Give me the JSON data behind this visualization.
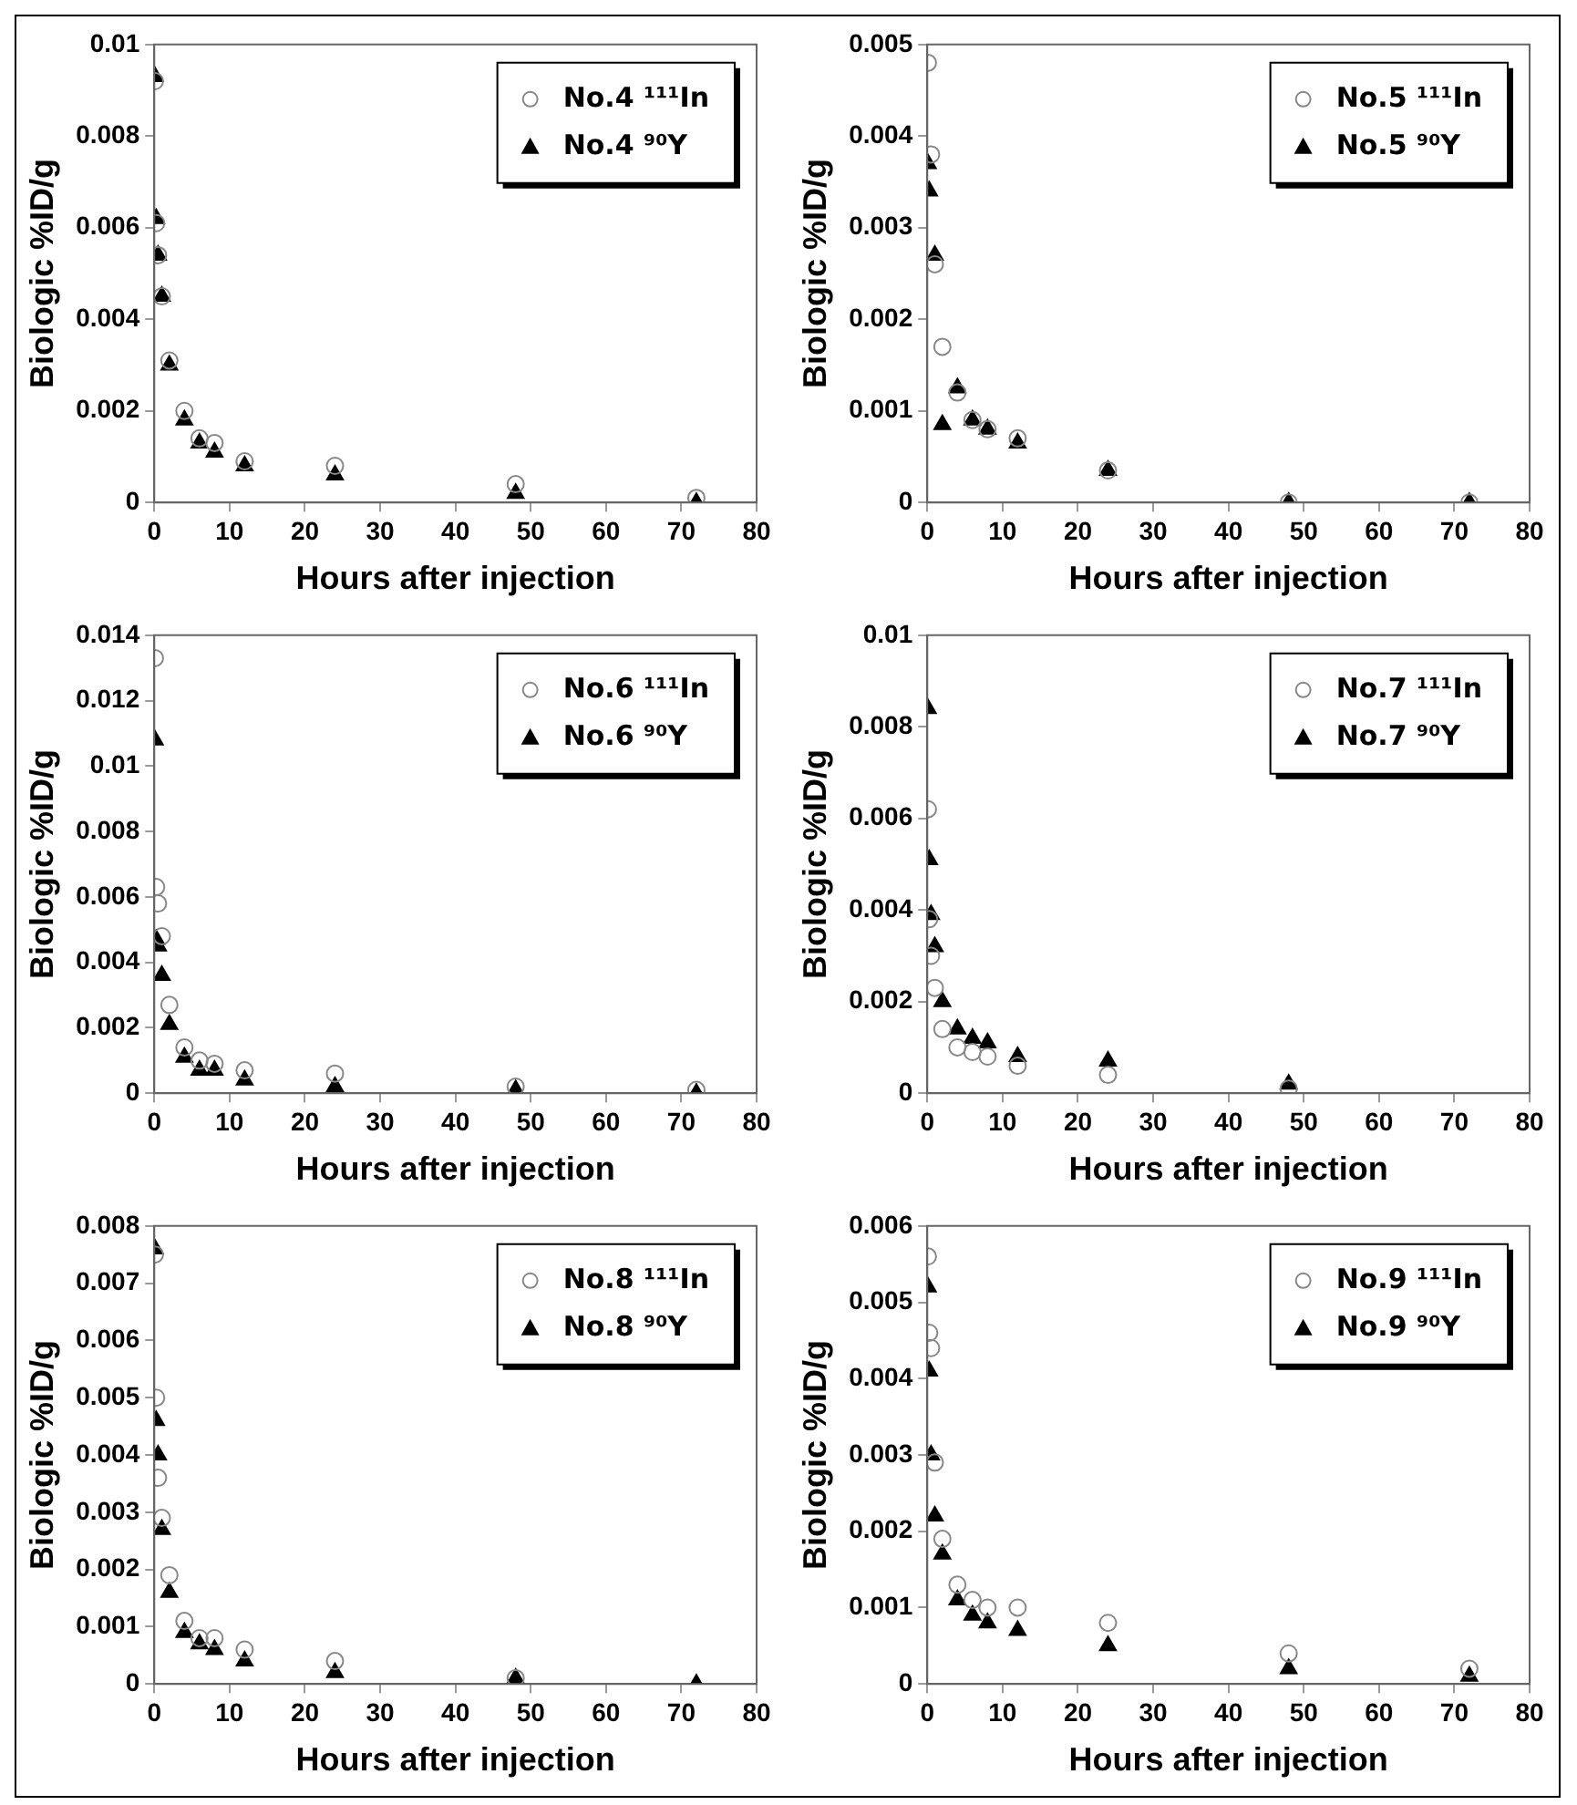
{
  "chart_data": [
    {
      "type": "scatter",
      "xlabel": "Hours after injection",
      "ylabel": "Biologic %ID/g",
      "xlim": [
        0,
        80
      ],
      "xticks": [
        0,
        10,
        20,
        30,
        40,
        50,
        60,
        70,
        80
      ],
      "ylim": [
        0,
        0.01
      ],
      "yticks": [
        0,
        0.002,
        0.004,
        0.006,
        0.008,
        0.01
      ],
      "legend": "top right",
      "grid": false,
      "series": [
        {
          "name": "No.4 ¹¹¹In",
          "color": "#888888",
          "marker": "circle",
          "x": [
            0.08,
            0.25,
            0.5,
            1,
            2,
            4,
            6,
            8,
            12,
            24,
            48,
            72
          ],
          "values": [
            0.0092,
            0.0061,
            0.0054,
            0.0045,
            0.0031,
            0.002,
            0.0014,
            0.0013,
            0.0009,
            0.0008,
            0.0004,
            0.0001
          ]
        },
        {
          "name": "No.4 ⁹⁰Y",
          "color": "#000000",
          "marker": "triangle",
          "x": [
            0.08,
            0.25,
            0.5,
            1,
            2,
            4,
            6,
            8,
            12,
            24,
            48,
            72
          ],
          "values": [
            0.0093,
            0.0062,
            0.0054,
            0.0045,
            0.003,
            0.0018,
            0.0013,
            0.0011,
            0.0008,
            0.0006,
            0.0002,
            0
          ]
        }
      ]
    },
    {
      "type": "scatter",
      "xlabel": "Hours after injection",
      "ylabel": "Biologic %ID/g",
      "xlim": [
        0,
        80
      ],
      "xticks": [
        0,
        10,
        20,
        30,
        40,
        50,
        60,
        70,
        80
      ],
      "ylim": [
        0,
        0.005
      ],
      "yticks": [
        0,
        0.001,
        0.002,
        0.003,
        0.004,
        0.005
      ],
      "legend": "top right",
      "grid": false,
      "series": [
        {
          "name": "No.5 ¹¹¹In",
          "color": "#888888",
          "marker": "circle",
          "x": [
            0.08,
            0.5,
            1,
            2,
            4,
            6,
            8,
            12,
            24,
            48,
            72
          ],
          "values": [
            0.0048,
            0.0038,
            0.0026,
            0.0017,
            0.0012,
            0.0009,
            0.0008,
            0.0007,
            0.00035,
            0,
            0
          ]
        },
        {
          "name": "No.5 ⁹⁰Y",
          "color": "#000000",
          "marker": "triangle",
          "x": [
            0.08,
            0.25,
            1,
            2,
            4,
            6,
            8,
            12,
            24,
            48,
            72
          ],
          "values": [
            0.0037,
            0.0034,
            0.0027,
            0.00085,
            0.00125,
            0.0009,
            0.0008,
            0.00065,
            0.00035,
            0,
            0
          ]
        }
      ]
    },
    {
      "type": "scatter",
      "xlabel": "Hours after injection",
      "ylabel": "Biologic %ID/g",
      "xlim": [
        0,
        80
      ],
      "xticks": [
        0,
        10,
        20,
        30,
        40,
        50,
        60,
        70,
        80
      ],
      "ylim": [
        0,
        0.014
      ],
      "yticks": [
        0,
        0.002,
        0.004,
        0.006,
        0.008,
        0.01,
        0.012,
        0.014
      ],
      "legend": "top right",
      "grid": false,
      "series": [
        {
          "name": "No.6 ¹¹¹In",
          "color": "#888888",
          "marker": "circle",
          "x": [
            0.08,
            0.25,
            0.5,
            1,
            2,
            4,
            6,
            8,
            12,
            24,
            48,
            72
          ],
          "values": [
            0.0133,
            0.0063,
            0.0058,
            0.0048,
            0.0027,
            0.0014,
            0.001,
            0.0009,
            0.0007,
            0.0006,
            0.0002,
            0.0001
          ]
        },
        {
          "name": "No.6 ⁹⁰Y",
          "color": "#000000",
          "marker": "triangle",
          "x": [
            0.08,
            0.25,
            0.5,
            1,
            2,
            4,
            6,
            8,
            12,
            24,
            48,
            72
          ],
          "values": [
            0.0108,
            0.0047,
            0.0045,
            0.0036,
            0.0021,
            0.0011,
            0.0007,
            0.0007,
            0.0004,
            0.0002,
            0.0001,
            0
          ]
        }
      ]
    },
    {
      "type": "scatter",
      "xlabel": "Hours after injection",
      "ylabel": "Biologic %ID/g",
      "xlim": [
        0,
        80
      ],
      "xticks": [
        0,
        10,
        20,
        30,
        40,
        50,
        60,
        70,
        80
      ],
      "ylim": [
        0,
        0.01
      ],
      "yticks": [
        0,
        0.002,
        0.004,
        0.006,
        0.008,
        0.01
      ],
      "legend": "top right",
      "grid": false,
      "series": [
        {
          "name": "No.7 ¹¹¹In",
          "color": "#888888",
          "marker": "circle",
          "x": [
            0.08,
            0.25,
            0.5,
            1,
            2,
            4,
            6,
            8,
            12,
            24,
            48
          ],
          "values": [
            0.0062,
            0.0038,
            0.003,
            0.0023,
            0.0014,
            0.001,
            0.0009,
            0.0008,
            0.0006,
            0.0004,
            0.0001
          ]
        },
        {
          "name": "No.7 ⁹⁰Y",
          "color": "#000000",
          "marker": "triangle",
          "x": [
            0.08,
            0.25,
            0.5,
            1,
            2,
            4,
            6,
            8,
            12,
            24,
            48
          ],
          "values": [
            0.0084,
            0.0051,
            0.0039,
            0.0032,
            0.002,
            0.0014,
            0.0012,
            0.0011,
            0.0008,
            0.0007,
            0.0002
          ]
        }
      ]
    },
    {
      "type": "scatter",
      "xlabel": "Hours after injection",
      "ylabel": "Biologic %ID/g",
      "xlim": [
        0,
        80
      ],
      "xticks": [
        0,
        10,
        20,
        30,
        40,
        50,
        60,
        70,
        80
      ],
      "ylim": [
        0,
        0.008
      ],
      "yticks": [
        0,
        0.001,
        0.002,
        0.003,
        0.004,
        0.005,
        0.006,
        0.007,
        0.008
      ],
      "legend": "top right",
      "grid": false,
      "series": [
        {
          "name": "No.8 ¹¹¹In",
          "color": "#888888",
          "marker": "circle",
          "x": [
            0.08,
            0.25,
            0.5,
            1,
            2,
            4,
            6,
            8,
            12,
            24,
            48
          ],
          "values": [
            0.0075,
            0.005,
            0.0036,
            0.0029,
            0.0019,
            0.0011,
            0.0008,
            0.0008,
            0.0006,
            0.0004,
            0.0001
          ]
        },
        {
          "name": "No.8 ⁹⁰Y",
          "color": "#000000",
          "marker": "triangle",
          "x": [
            0.08,
            0.25,
            0.5,
            1,
            2,
            4,
            6,
            8,
            12,
            24,
            48,
            72
          ],
          "values": [
            0.0076,
            0.0046,
            0.004,
            0.0027,
            0.0016,
            0.0009,
            0.0007,
            0.0006,
            0.0004,
            0.0002,
            0.0001,
            0
          ]
        }
      ]
    },
    {
      "type": "scatter",
      "xlabel": "Hours after injection",
      "ylabel": "Biologic %ID/g",
      "xlim": [
        0,
        80
      ],
      "xticks": [
        0,
        10,
        20,
        30,
        40,
        50,
        60,
        70,
        80
      ],
      "ylim": [
        0,
        0.006
      ],
      "yticks": [
        0,
        0.001,
        0.002,
        0.003,
        0.004,
        0.005,
        0.006
      ],
      "legend": "top right",
      "grid": false,
      "series": [
        {
          "name": "No.9 ¹¹¹In",
          "color": "#888888",
          "marker": "circle",
          "x": [
            0.08,
            0.25,
            0.5,
            1,
            2,
            4,
            6,
            8,
            12,
            24,
            48,
            72
          ],
          "values": [
            0.0056,
            0.0046,
            0.0044,
            0.0029,
            0.0019,
            0.0013,
            0.0011,
            0.001,
            0.001,
            0.0008,
            0.0004,
            0.0002
          ]
        },
        {
          "name": "No.9 ⁹⁰Y",
          "color": "#000000",
          "marker": "triangle",
          "x": [
            0.08,
            0.25,
            0.5,
            1,
            2,
            4,
            6,
            8,
            12,
            24,
            48,
            72
          ],
          "values": [
            0.0052,
            0.0041,
            0.003,
            0.0022,
            0.0017,
            0.0011,
            0.0009,
            0.0008,
            0.0007,
            0.0005,
            0.0002,
            0.0001
          ]
        }
      ]
    }
  ]
}
